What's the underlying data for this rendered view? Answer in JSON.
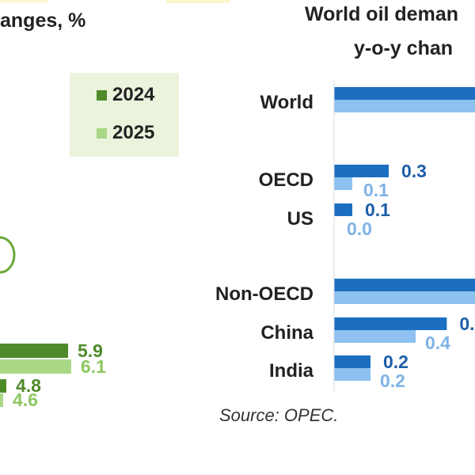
{
  "left_panel": {
    "title": "anges, %",
    "legend": [
      {
        "label": "2024",
        "color": "#4e8a2a"
      },
      {
        "label": "2025",
        "color": "#a9d785"
      }
    ]
  },
  "right_panel": {
    "title_line1": "World oil deman",
    "title_line2": "y-o-y chan",
    "source": "Source: OPEC."
  },
  "chart_data": [
    {
      "type": "bar",
      "orientation": "horizontal",
      "title": "anges, %",
      "series": [
        {
          "name": "2024",
          "color": "#4e8a2a",
          "values": [
            5.9,
            4.8
          ]
        },
        {
          "name": "2025",
          "color": "#a9d785",
          "values": [
            6.1,
            4.6
          ]
        }
      ],
      "data_labels": [
        {
          "series": "2024",
          "value": "5.9"
        },
        {
          "series": "2025",
          "value": "6.1"
        },
        {
          "series": "2024",
          "value": "4.8"
        },
        {
          "series": "2025",
          "value": "4.6"
        }
      ],
      "legend_position": "top-right"
    },
    {
      "type": "bar",
      "orientation": "horizontal",
      "title": "World oil deman y-o-y chan",
      "categories": [
        "World",
        "OECD",
        "US",
        "Non-OECD",
        "China",
        "India"
      ],
      "series": [
        {
          "color": "#1c6fc0",
          "values": [
            null,
            0.3,
            0.1,
            null,
            null,
            0.2
          ],
          "labels": [
            "",
            "0.3",
            "0.1",
            "",
            "0.",
            "0.2"
          ]
        },
        {
          "color": "#8cc1f0",
          "values": [
            null,
            0.1,
            0.0,
            null,
            0.4,
            0.2
          ],
          "labels": [
            "",
            "0.1",
            "0.0",
            "",
            "0.4",
            "0.2"
          ]
        }
      ],
      "bar_fill_of_panel_width": {
        "World": [
          1,
          1
        ],
        "China": [
          0.8,
          1
        ],
        "Non-OECD": [
          1,
          1
        ]
      },
      "grid": false
    }
  ]
}
